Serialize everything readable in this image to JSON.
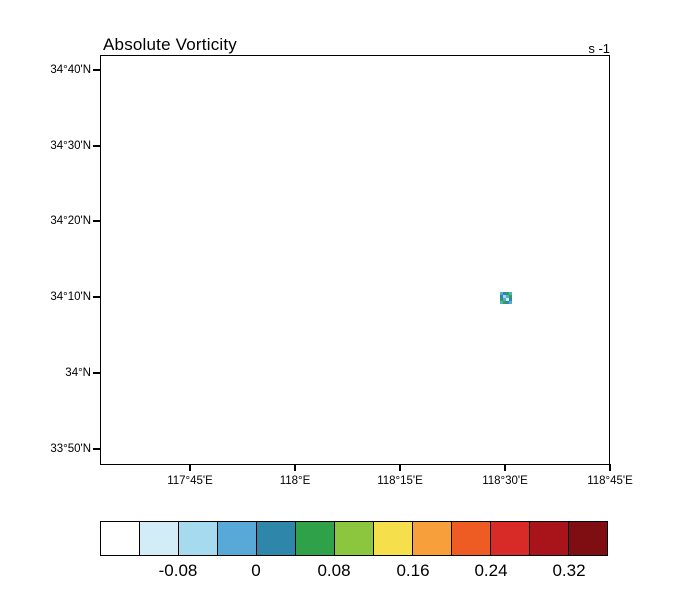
{
  "title": "Absolute Vorticity",
  "units": "s -1",
  "axes": {
    "lat_labels": [
      "34°40'N",
      "34°30'N",
      "34°20'N",
      "34°10'N",
      "34°N",
      "33°50'N"
    ],
    "lon_labels": [
      "117°45'E",
      "118°E",
      "118°15'E",
      "118°30'E",
      "118°45'E"
    ]
  },
  "colorbar": {
    "colors": [
      "#FFFFFF",
      "#D3EDF8",
      "#A6DBEF",
      "#58A9D7",
      "#2E86AB",
      "#2FA148",
      "#8CC63E",
      "#F5E04B",
      "#F7A03B",
      "#EF5C23",
      "#D82B27",
      "#A81419",
      "#7E0E12"
    ],
    "labels": [
      "-0.08",
      "0",
      "0.08",
      "0.16",
      "0.24",
      "0.32"
    ]
  },
  "marker": {
    "cells": [
      "#58A9D7",
      "#2E86AB",
      "#2FA148",
      "#58A9D7",
      "#2E86AB",
      "#A6DBEF",
      "#58A9D7",
      "#2FA148",
      "#2FA148",
      "#58A9D7",
      "#D3EDF8",
      "#2E86AB",
      "#58A9D7",
      "#2FA148",
      "#2E86AB",
      "#58A9D7"
    ]
  },
  "chart_data": {
    "type": "heatmap",
    "title": "Absolute Vorticity",
    "units": "s -1",
    "lat_ticks": [
      "34°40'N",
      "34°30'N",
      "34°20'N",
      "34°10'N",
      "34°N",
      "33°50'N"
    ],
    "lon_ticks": [
      "117°45'E",
      "118°E",
      "118°15'E",
      "118°30'E",
      "118°45'E"
    ],
    "contour_levels": [
      -0.12,
      -0.08,
      -0.04,
      0,
      0.04,
      0.08,
      0.12,
      0.16,
      0.2,
      0.24,
      0.28,
      0.32
    ],
    "labeled_levels": [
      -0.08,
      0,
      0.08,
      0.16,
      0.24,
      0.32
    ],
    "legend_position": "bottom horizontal labelbar",
    "grid": "off",
    "field_summary": "Entire domain below lowest contour (white / blank) except one tiny localized feature",
    "features": [
      {
        "lon_e": 118.53,
        "lat_n": 34.18,
        "approx_extent_deg": 0.03,
        "approx_value_range_s-1": "0 to 0.12",
        "description": "small multicolor vorticity maximum near 118°32'E, 34°11'N"
      }
    ]
  }
}
